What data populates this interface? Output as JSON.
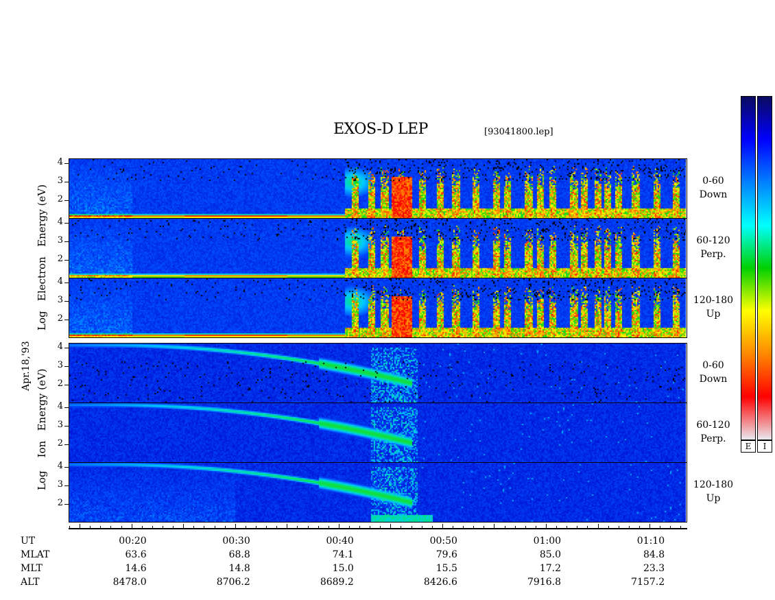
{
  "header": {
    "title": "EXOS-D LEP",
    "filename": "[93041800.lep]"
  },
  "date_label": "Apr.18,'93",
  "electron_label": [
    "Log",
    "Electron",
    "Energy",
    "(eV)"
  ],
  "ion_label": [
    "Log",
    "Ion",
    "Energy",
    "(eV)"
  ],
  "channels": [
    {
      "name": "0-60",
      "dir": "Down"
    },
    {
      "name": "60-120",
      "dir": "Perp."
    },
    {
      "name": "120-180",
      "dir": "Up"
    },
    {
      "name": "0-60",
      "dir": "Down"
    },
    {
      "name": "60-120",
      "dir": "Perp."
    },
    {
      "name": "120-180",
      "dir": "Up"
    }
  ],
  "colorbar": {
    "labels": [
      "E",
      "I"
    ],
    "colors": [
      "#e9e9ef",
      "#ff0000",
      "#ff8800",
      "#ffff00",
      "#00d000",
      "#00ffff",
      "#0080ff",
      "#0000ff",
      "#0a0a60"
    ]
  },
  "chart_data": {
    "type": "heatmap",
    "title": "EXOS-D LEP",
    "ylabel": "Log Energy (eV)",
    "y_ticks": [
      "2",
      "3",
      "4"
    ],
    "x_ticks": [
      "00:20",
      "00:30",
      "00:40",
      "00:50",
      "01:00",
      "01:10"
    ],
    "table": {
      "rows": [
        {
          "label": "UT",
          "values": [
            "00:20",
            "00:30",
            "00:40",
            "00:50",
            "01:00",
            "01:10"
          ]
        },
        {
          "label": "MLAT",
          "values": [
            "63.6",
            "68.8",
            "74.1",
            "79.6",
            "85.0",
            "84.8"
          ]
        },
        {
          "label": "MLT",
          "values": [
            "14.6",
            "14.8",
            "15.0",
            "15.5",
            "17.2",
            "23.3"
          ]
        },
        {
          "label": "ALT",
          "values": [
            "8478.0",
            "8706.2",
            "8689.2",
            "8426.6",
            "7916.8",
            "7157.2"
          ]
        }
      ]
    }
  }
}
